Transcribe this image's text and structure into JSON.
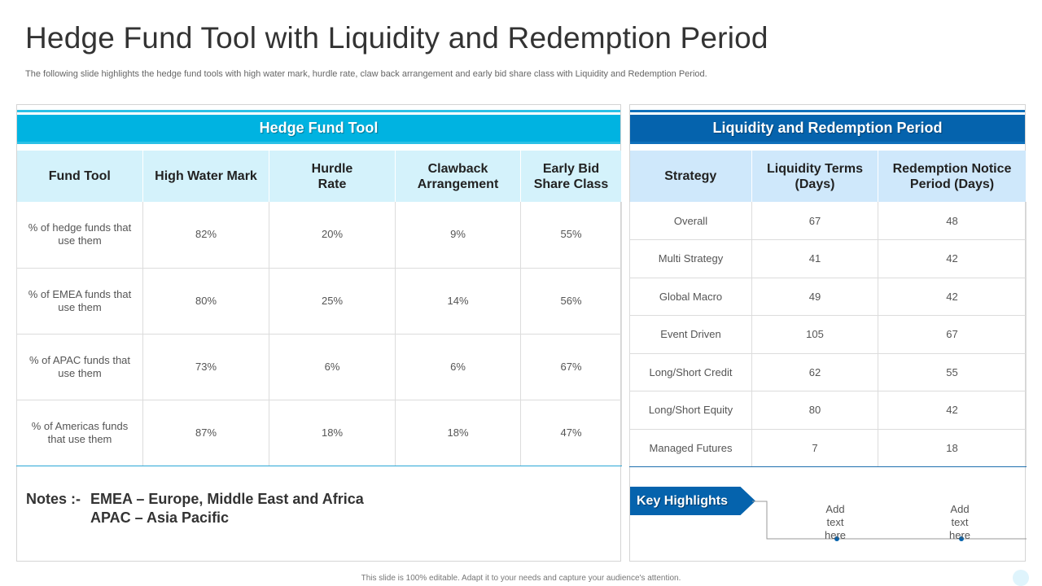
{
  "title": "Hedge Fund Tool with Liquidity and Redemption Period",
  "subtitle": "The following slide highlights the hedge fund tools with high water mark, hurdle rate, claw back arrangement and early bid share class with Liquidity and Redemption Period.",
  "left": {
    "header": "Hedge Fund Tool",
    "columns": [
      "Fund Tool",
      "High Water Mark",
      "Hurdle Rate",
      "Clawback Arrangement",
      "Early Bid Share Class"
    ],
    "rows": [
      [
        "% of hedge funds that use them",
        "82%",
        "20%",
        "9%",
        "55%"
      ],
      [
        "% of EMEA funds that use them",
        "80%",
        "25%",
        "14%",
        "56%"
      ],
      [
        "% of APAC funds that use them",
        "73%",
        "6%",
        "6%",
        "67%"
      ],
      [
        "% of Americas funds that use them",
        "87%",
        "18%",
        "18%",
        "47%"
      ]
    ],
    "notes": {
      "label": "Notes :-",
      "line1": "EMEA – Europe, Middle East and Africa",
      "line2": "APAC – Asia Pacific"
    }
  },
  "right": {
    "header": "Liquidity and Redemption Period",
    "columns": [
      "Strategy",
      "Liquidity Terms (Days)",
      "Redemption Notice Period (Days)"
    ],
    "rows": [
      [
        "Overall",
        "67",
        "48"
      ],
      [
        "Multi Strategy",
        "41",
        "42"
      ],
      [
        "Global Macro",
        "49",
        "42"
      ],
      [
        "Event Driven",
        "105",
        "67"
      ],
      [
        "Long/Short Credit",
        "62",
        "55"
      ],
      [
        "Long/Short Equity",
        "80",
        "42"
      ],
      [
        "Managed Futures",
        "7",
        "18"
      ]
    ],
    "key_highlights": {
      "label": "Key Highlights",
      "items": [
        "Add text here",
        "Add text here"
      ]
    }
  },
  "footer": "This slide is 100% editable. Adapt it to your needs and capture your audience's attention.",
  "colors": {
    "left_band": "#00b3e1",
    "right_band": "#0563ad",
    "left_header_bg": "#d4f2fb",
    "right_header_bg": "#cfe8fb"
  }
}
